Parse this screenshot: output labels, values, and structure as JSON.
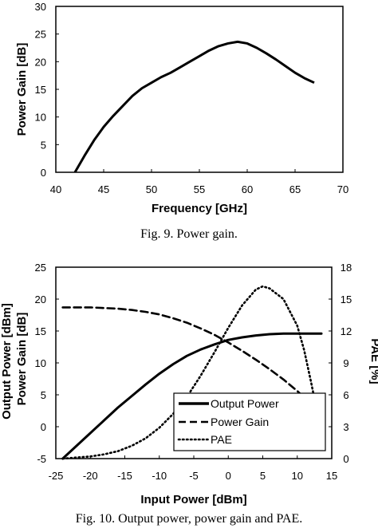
{
  "figures": {
    "fig9_caption": "Fig. 9.    Power gain.",
    "fig10_caption": "Fig. 10.    Output power, power gain and PAE."
  },
  "chart_data": [
    {
      "type": "line",
      "xlabel": "Frequency [GHz]",
      "ylabel": "Power Gain [dB]",
      "xlim": [
        40,
        70
      ],
      "ylim": [
        0,
        30
      ],
      "xticks": [
        "40",
        "45",
        "50",
        "55",
        "60",
        "65",
        "70"
      ],
      "yticks": [
        "0",
        "5",
        "10",
        "15",
        "20",
        "25",
        "30"
      ],
      "grid": false,
      "series": [
        {
          "style": "solid",
          "x": [
            42,
            43,
            44,
            45,
            46,
            47,
            48,
            49,
            50,
            51,
            52,
            53,
            54,
            55,
            56,
            57,
            58,
            59,
            60,
            61,
            62,
            63,
            64,
            65,
            66,
            67
          ],
          "y": [
            0.0,
            3.0,
            5.8,
            8.2,
            10.2,
            12.0,
            13.8,
            15.2,
            16.2,
            17.2,
            18.0,
            19.0,
            20.0,
            21.0,
            22.0,
            22.8,
            23.3,
            23.6,
            23.3,
            22.5,
            21.5,
            20.4,
            19.2,
            18.0,
            17.0,
            16.2
          ]
        }
      ]
    },
    {
      "type": "line",
      "xlabel": "Input Power [dBm]",
      "ylabel_left_1": "Output Power [dBm]",
      "ylabel_left_2": "Power Gain [dB]",
      "ylabel_right": "PAE [%]",
      "xlim": [
        -25,
        15
      ],
      "ylim": [
        -5,
        25
      ],
      "ylim_right": [
        0,
        18
      ],
      "xticks": [
        "-25",
        "-20",
        "-15",
        "-10",
        "-5",
        "0",
        "5",
        "10",
        "15"
      ],
      "yticks": [
        "-5",
        "0",
        "5",
        "10",
        "15",
        "20",
        "25"
      ],
      "yticks_right": [
        "0",
        "3",
        "6",
        "9",
        "12",
        "15",
        "18"
      ],
      "legend": "bottom-right",
      "series": [
        {
          "name": "Output Power",
          "style": "solid",
          "axis": "left",
          "x": [
            -24,
            -22,
            -20,
            -18,
            -16,
            -14,
            -12,
            -10,
            -8,
            -6,
            -4,
            -2,
            0,
            2,
            4,
            6,
            8,
            10,
            12,
            13.5
          ],
          "y": [
            -5.0,
            -3.0,
            -1.0,
            1.0,
            3.0,
            4.8,
            6.6,
            8.3,
            9.8,
            11.1,
            12.1,
            12.9,
            13.6,
            14.0,
            14.3,
            14.5,
            14.6,
            14.6,
            14.6,
            14.6
          ]
        },
        {
          "name": "Power Gain",
          "style": "dashed",
          "axis": "left",
          "x": [
            -24,
            -22,
            -20,
            -18,
            -16,
            -14,
            -12,
            -10,
            -8,
            -6,
            -4,
            -2,
            0,
            2,
            4,
            6,
            8,
            10,
            12,
            13.5
          ],
          "y": [
            18.7,
            18.7,
            18.7,
            18.6,
            18.5,
            18.3,
            18.0,
            17.6,
            17.0,
            16.3,
            15.4,
            14.4,
            13.2,
            11.9,
            10.5,
            9.0,
            7.4,
            5.6,
            3.5,
            1.2
          ]
        },
        {
          "name": "PAE",
          "style": "dotted",
          "axis": "right",
          "x": [
            -24,
            -22,
            -20,
            -18,
            -16,
            -14,
            -12,
            -10,
            -8,
            -6,
            -4,
            -2,
            0,
            2,
            4,
            5,
            6,
            8,
            10,
            11,
            12,
            13,
            13.5
          ],
          "y": [
            0.0,
            0.1,
            0.2,
            0.4,
            0.7,
            1.2,
            1.9,
            2.9,
            4.2,
            5.8,
            7.8,
            10.0,
            12.3,
            14.4,
            15.9,
            16.2,
            16.0,
            15.0,
            12.5,
            10.2,
            7.2,
            4.0,
            2.0
          ]
        }
      ]
    }
  ]
}
